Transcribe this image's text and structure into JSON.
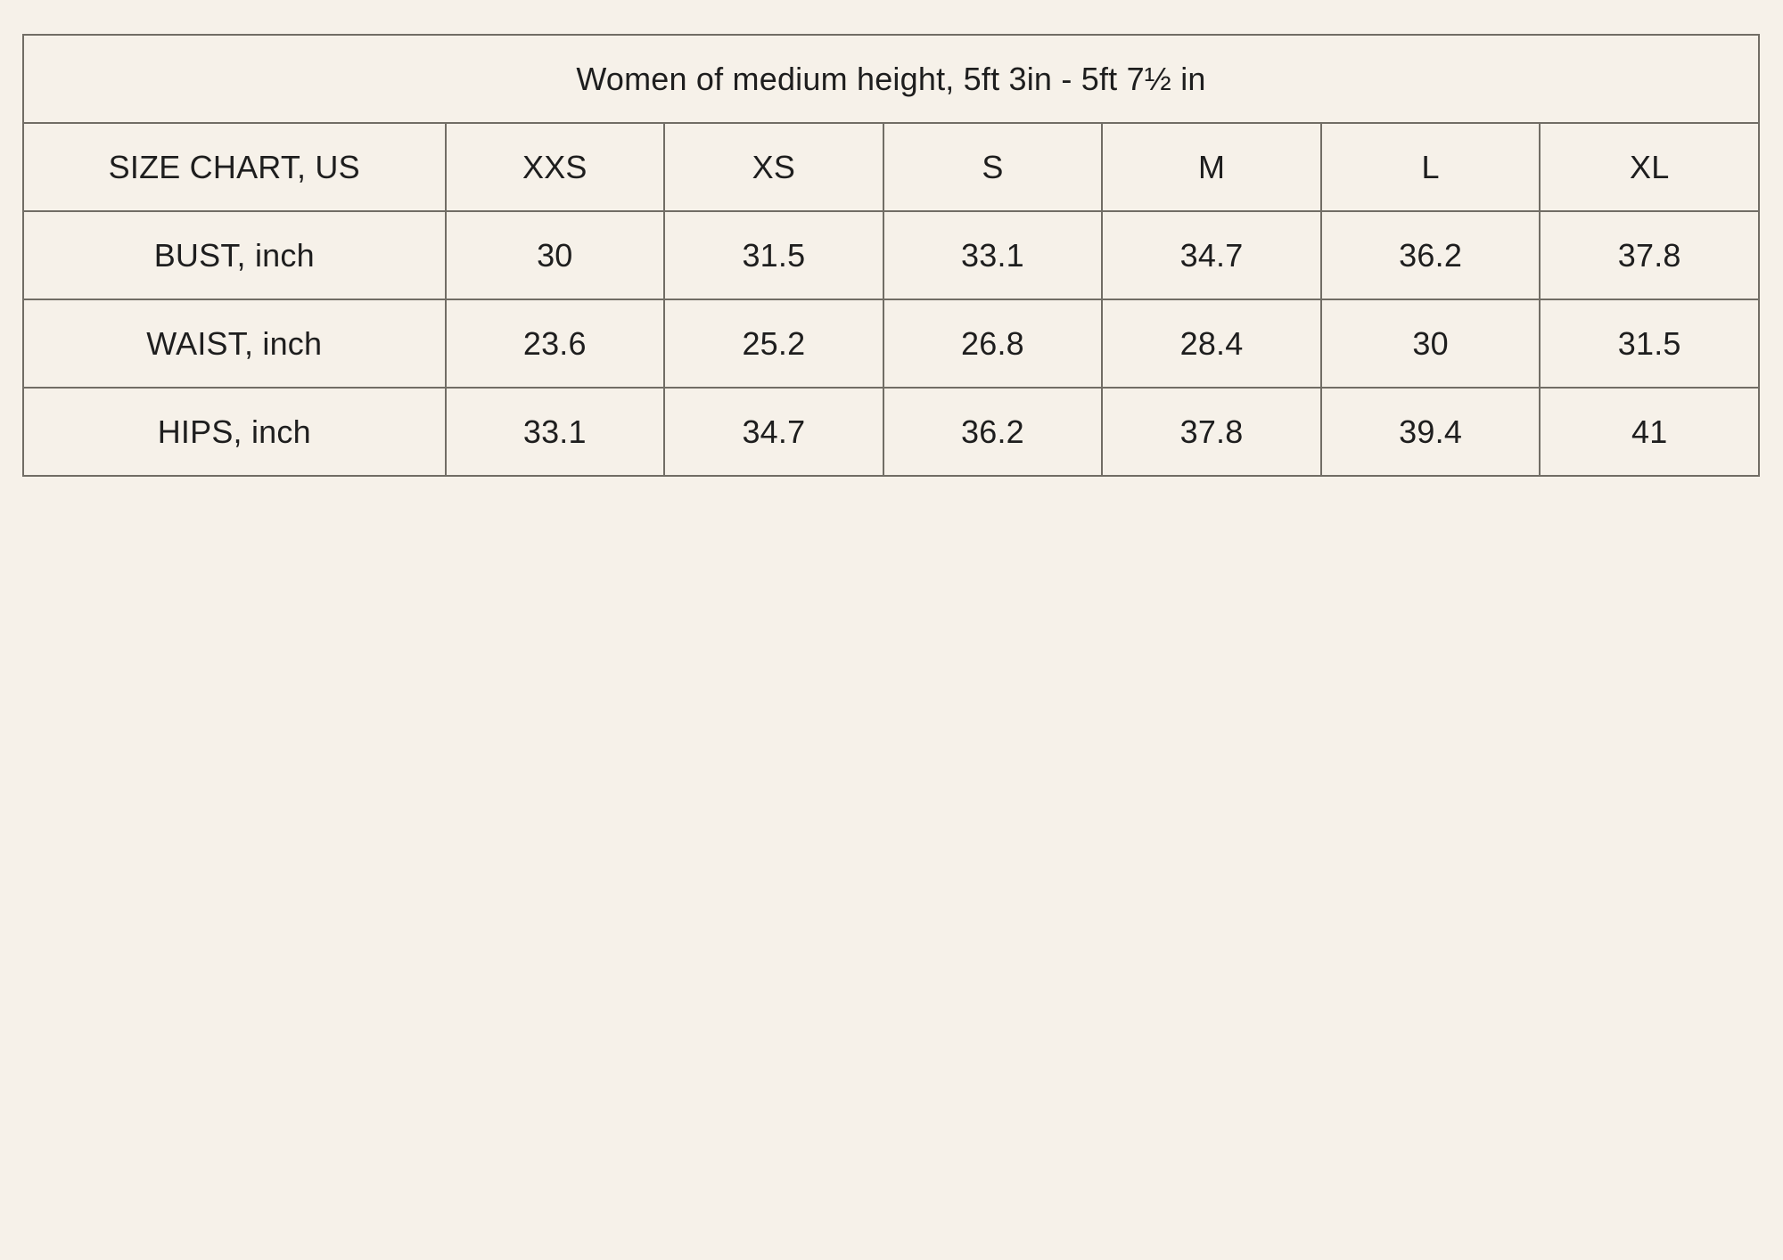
{
  "colors": {
    "background": "#f6f1e9",
    "border": "#716d65",
    "text": "#1e1e1e"
  },
  "chart_data": {
    "type": "table",
    "title": "Women of medium height, 5ft 3in - 5ft 7½ in",
    "columns": [
      "SIZE CHART, US",
      "XXS",
      "XS",
      "S",
      "M",
      "L",
      "XL"
    ],
    "rows": [
      [
        "BUST, inch",
        "30",
        "31.5",
        "33.1",
        "34.7",
        "36.2",
        "37.8"
      ],
      [
        "WAIST, inch",
        "23.6",
        "25.2",
        "26.8",
        "28.4",
        "30",
        "31.5"
      ],
      [
        "HIPS, inch",
        "33.1",
        "34.7",
        "36.2",
        "37.8",
        "39.4",
        "41"
      ]
    ]
  }
}
